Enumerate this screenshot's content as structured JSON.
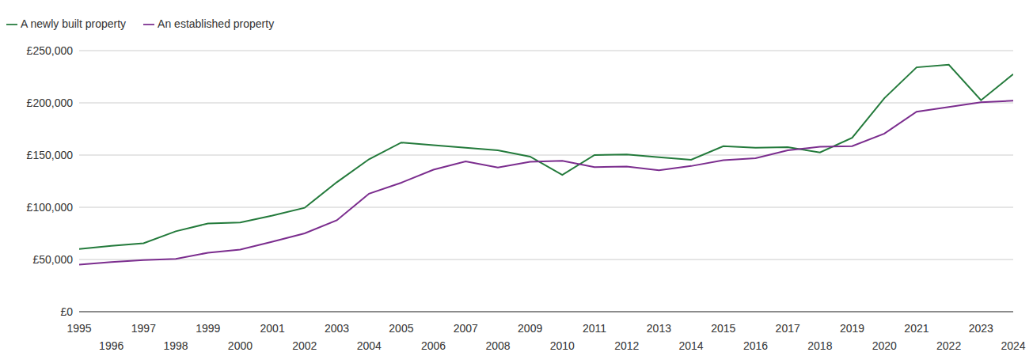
{
  "chart_data": {
    "type": "line",
    "x": [
      1995,
      1996,
      1997,
      1998,
      1999,
      2000,
      2001,
      2002,
      2003,
      2004,
      2005,
      2006,
      2007,
      2008,
      2009,
      2010,
      2011,
      2012,
      2013,
      2014,
      2015,
      2016,
      2017,
      2018,
      2019,
      2020,
      2021,
      2022,
      2023,
      2024
    ],
    "series": [
      {
        "name": "A newly built property",
        "color": "#237a3b",
        "values": [
          60000,
          63000,
          65500,
          77000,
          84500,
          85500,
          92000,
          99500,
          124000,
          146000,
          162000,
          159500,
          157000,
          154500,
          148500,
          131000,
          150000,
          150500,
          148000,
          145500,
          158500,
          157000,
          157500,
          152500,
          166500,
          204500,
          234000,
          236500,
          202500,
          227500
        ]
      },
      {
        "name": "An established property",
        "color": "#7b2d8e",
        "values": [
          45000,
          47500,
          49500,
          50500,
          56500,
          59500,
          67000,
          75000,
          87500,
          113000,
          123500,
          136000,
          144000,
          138000,
          143500,
          144500,
          138500,
          139000,
          135500,
          139500,
          145000,
          147000,
          154500,
          158000,
          158500,
          170500,
          191500,
          196000,
          200500,
          202000
        ]
      }
    ],
    "xlim": [
      1995,
      2024
    ],
    "xticks": [
      1995,
      1996,
      1997,
      1998,
      1999,
      2000,
      2001,
      2002,
      2003,
      2004,
      2005,
      2006,
      2007,
      2008,
      2009,
      2010,
      2011,
      2012,
      2013,
      2014,
      2015,
      2016,
      2017,
      2018,
      2019,
      2020,
      2021,
      2022,
      2023,
      2024
    ],
    "ylim": [
      0,
      250000
    ],
    "yticks": [
      {
        "value": 0,
        "label": "£0"
      },
      {
        "value": 50000,
        "label": "£50,000"
      },
      {
        "value": 100000,
        "label": "£100,000"
      },
      {
        "value": 150000,
        "label": "£150,000"
      },
      {
        "value": 200000,
        "label": "£200,000"
      },
      {
        "value": 250000,
        "label": "£250,000"
      }
    ],
    "grid": true,
    "legend": "top-left"
  }
}
